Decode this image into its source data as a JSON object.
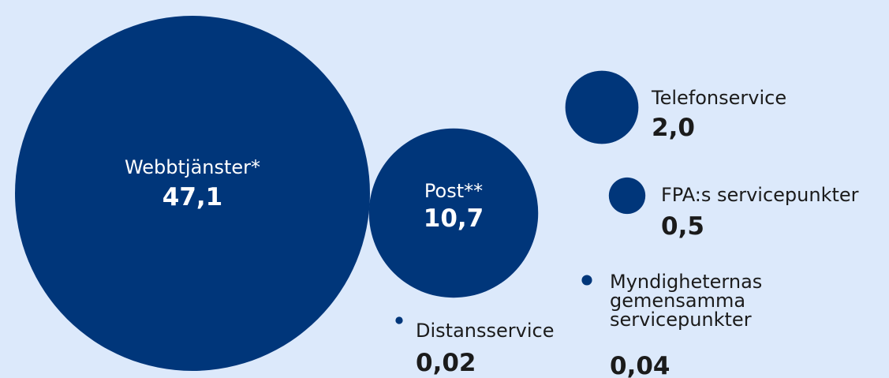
{
  "chart_data": {
    "type": "bubble",
    "colors": {
      "bubble": "#00367a",
      "label_inside": "#ffffff",
      "label_outside": "#1b1b1b",
      "background": "#dce9fb"
    },
    "series": [
      {
        "name": "Webbtjänster*",
        "value": 47.1,
        "value_label": "47,1"
      },
      {
        "name": "Post**",
        "value": 10.7,
        "value_label": "10,7"
      },
      {
        "name": "Telefonservice",
        "value": 2.0,
        "value_label": "2,0"
      },
      {
        "name": "FPA:s servicepunkter",
        "value": 0.5,
        "value_label": "0,5"
      },
      {
        "name": "Myndigheternas gemensamma servicepunkter",
        "name_lines": [
          "Myndigheternas",
          "gemensamma",
          "servicepunkter"
        ],
        "value": 0.04,
        "value_label": "0,04"
      },
      {
        "name": "Distansservice",
        "value": 0.02,
        "value_label": "0,02"
      }
    ]
  }
}
